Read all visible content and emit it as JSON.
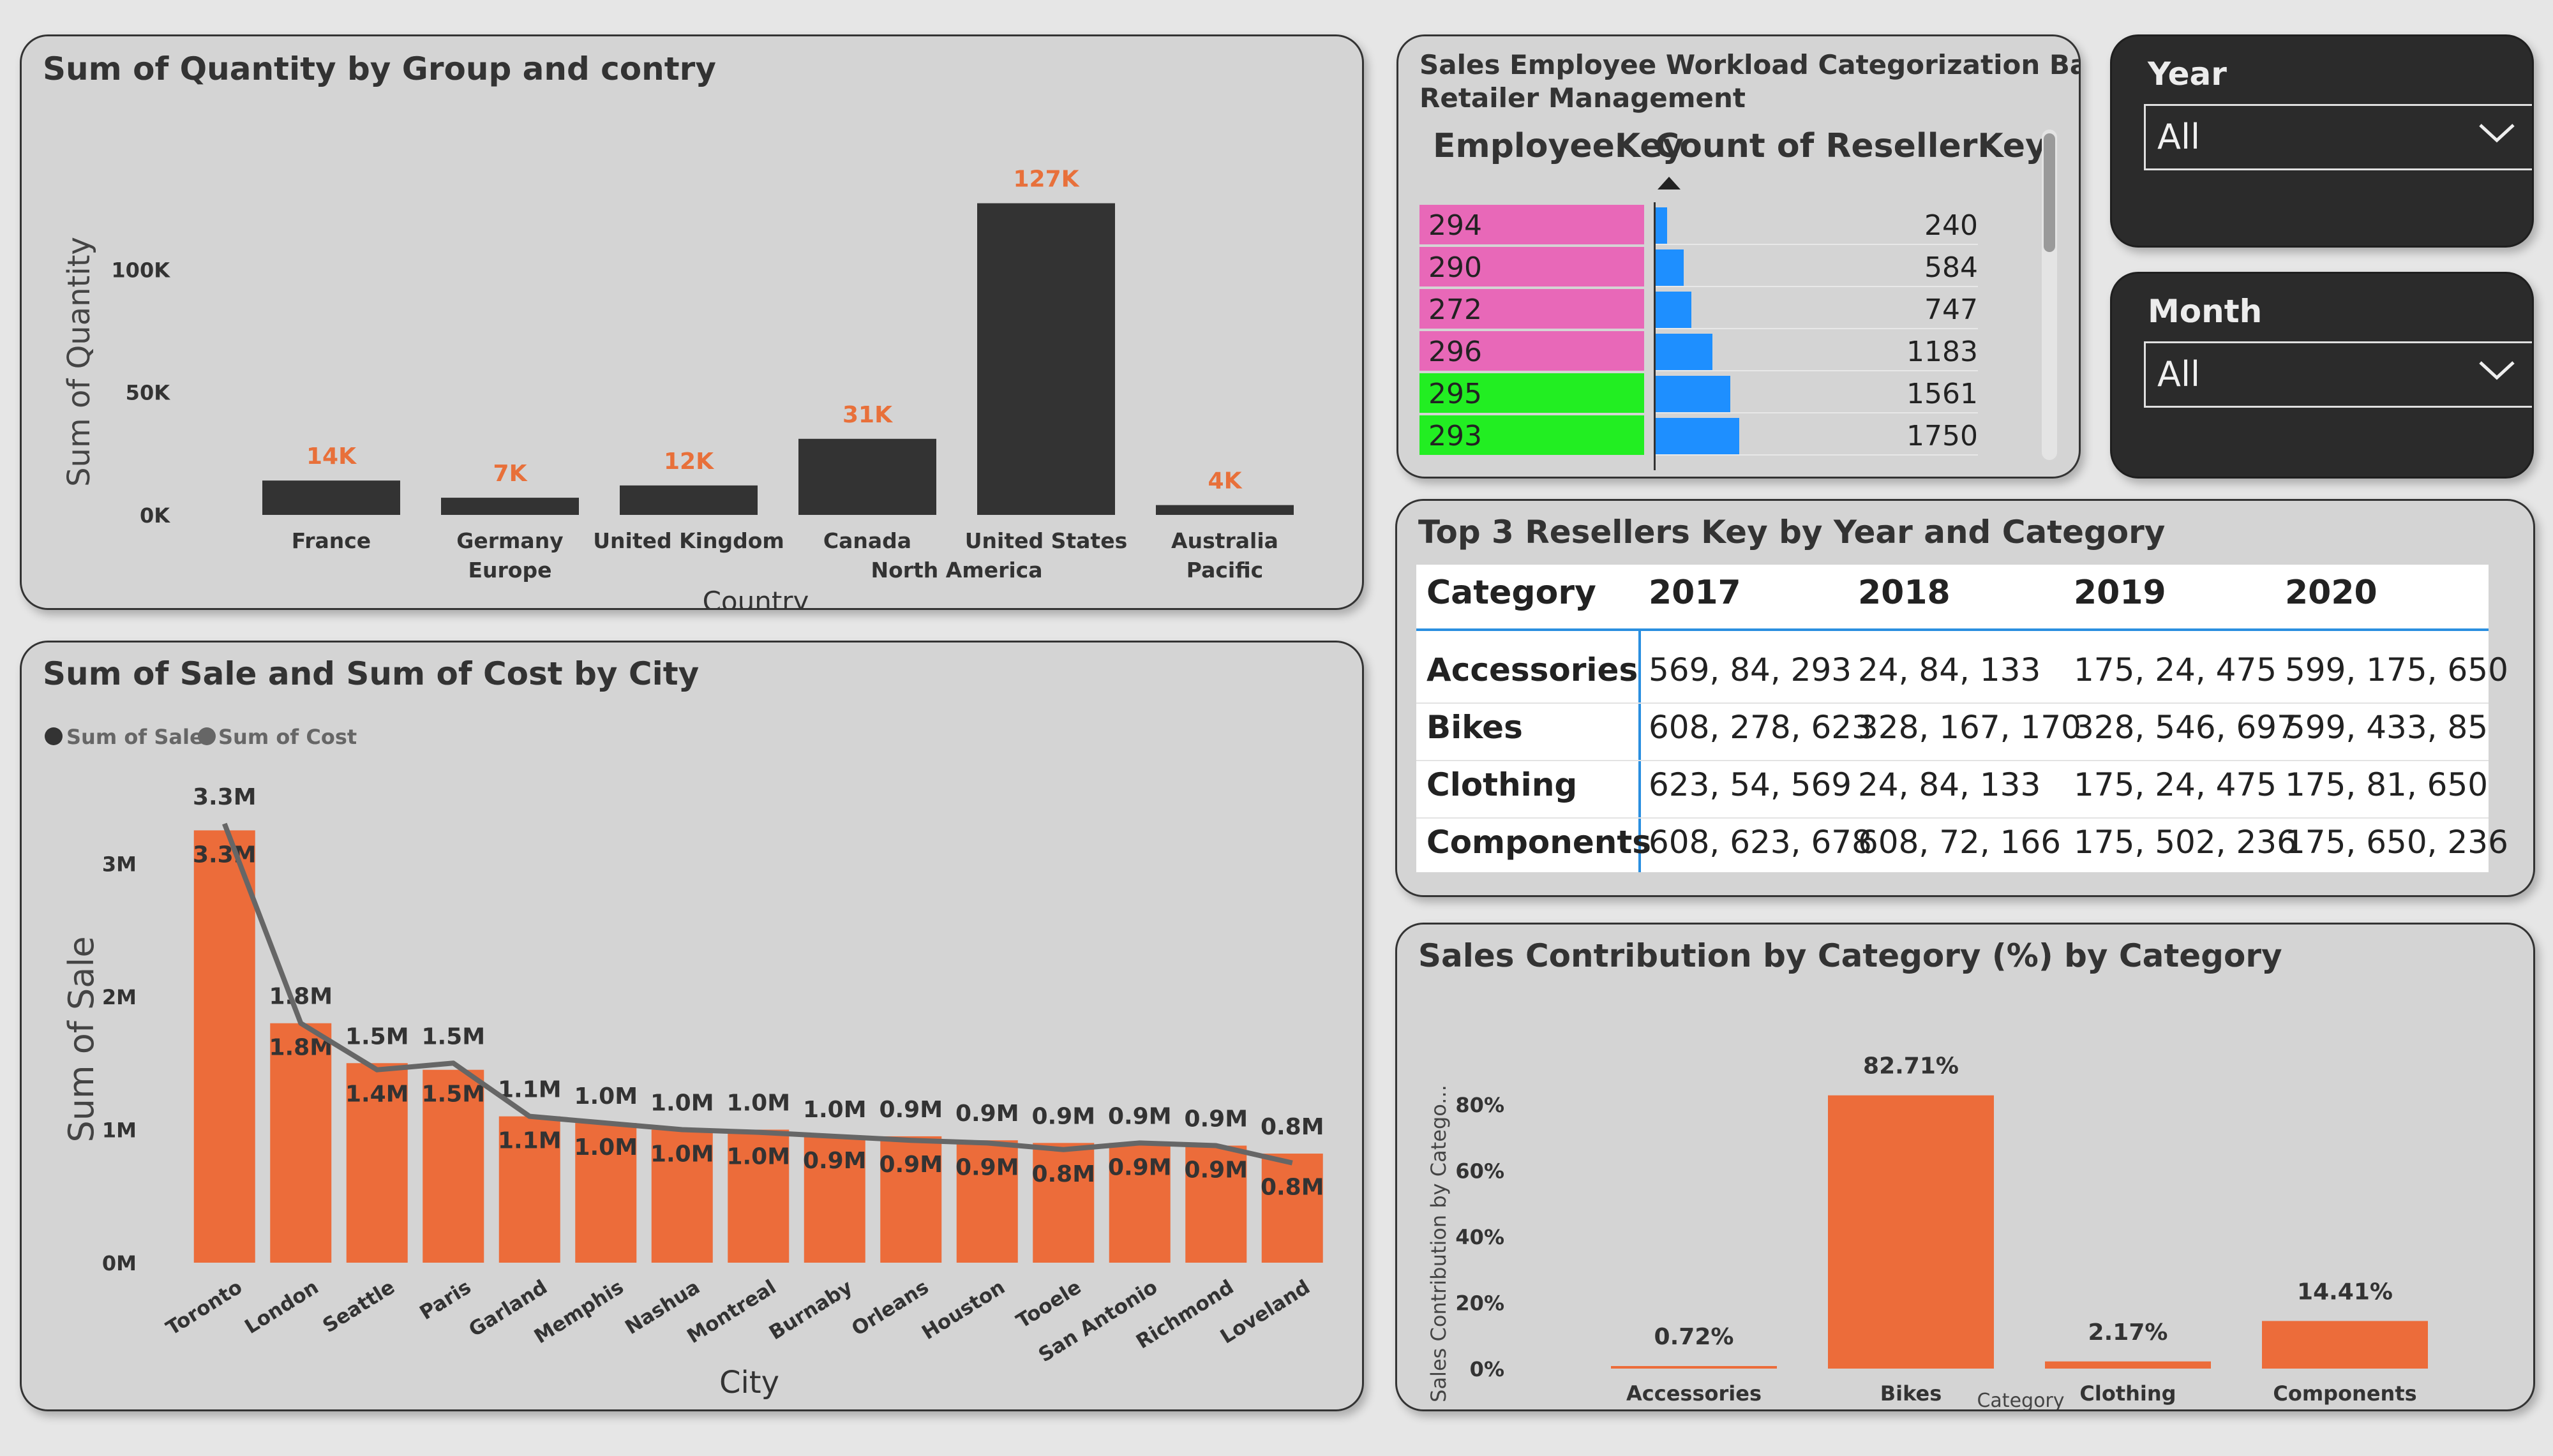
{
  "quantity_chart": {
    "title": "Sum of Quantity by Group and contry",
    "ylabel": "Sum of Quantity",
    "xlabel": "Country",
    "y_ticks": [
      "100K",
      "50K",
      "0K"
    ],
    "groups": [
      "Europe",
      "North America",
      "Pacific"
    ],
    "chart_data": {
      "type": "bar",
      "categories": [
        "France",
        "Germany",
        "United Kingdom",
        "Canada",
        "United States",
        "Australia"
      ],
      "groups": [
        "Europe",
        "Europe",
        "Europe",
        "North America",
        "North America",
        "Pacific"
      ],
      "values": [
        14000,
        7000,
        12000,
        31000,
        127000,
        4000
      ],
      "data_labels": [
        "14K",
        "7K",
        "12K",
        "31K",
        "127K",
        "4K"
      ],
      "ylim": [
        0,
        130000
      ],
      "bar_color": "#333333",
      "label_color": "#e8703a"
    }
  },
  "sale_cost_chart": {
    "title": "Sum of Sale and Sum of Cost by City",
    "legend": [
      "Sum of Sale",
      "Sum of Cost"
    ],
    "ylabel": "Sum of Sale",
    "xlabel": "City",
    "y_ticks": [
      "3M",
      "2M",
      "1M",
      "0M"
    ],
    "chart_data": {
      "type": "bar",
      "categories": [
        "Toronto",
        "London",
        "Seattle",
        "Paris",
        "Garland",
        "Memphis",
        "Nashua",
        "Montreal",
        "Burnaby",
        "Orleans",
        "Houston",
        "Tooele",
        "San Antonio",
        "Richmond",
        "Loveland"
      ],
      "series": [
        {
          "name": "Sum of Sale",
          "values": [
            3.25,
            1.8,
            1.5,
            1.45,
            1.1,
            1.05,
            1.0,
            1.0,
            0.95,
            0.95,
            0.92,
            0.9,
            0.9,
            0.88,
            0.82
          ],
          "labels": [
            "3.3M",
            "1.8M",
            "1.5M",
            "1.5M",
            "1.1M",
            "1.0M",
            "1.0M",
            "1.0M",
            "1.0M",
            "0.9M",
            "0.9M",
            "0.9M",
            "0.9M",
            "0.9M",
            "0.8M"
          ],
          "color": "#ec6c3a"
        },
        {
          "name": "Sum of Cost",
          "values": [
            3.3,
            1.8,
            1.45,
            1.5,
            1.1,
            1.05,
            1.0,
            0.98,
            0.95,
            0.92,
            0.9,
            0.85,
            0.9,
            0.88,
            0.75
          ],
          "labels": [
            "3.3M",
            "1.8M",
            "1.4M",
            "1.5M",
            "1.1M",
            "1.0M",
            "1.0M",
            "1.0M",
            "0.9M",
            "0.9M",
            "0.9M",
            "0.8M",
            "0.9M",
            "0.9M",
            "0.8M"
          ],
          "color": "#666666"
        }
      ],
      "ylim": [
        0,
        3.3
      ],
      "unit": "M"
    }
  },
  "workload": {
    "title_line1": "Sales Employee Workload Categorization Based on",
    "title_line2": "Retailer Management",
    "col1": "EmployeeKey",
    "col2": "Count of ResellerKey",
    "max_value": 2000,
    "rows": [
      {
        "key": "294",
        "value": 240,
        "color": "#e868b8"
      },
      {
        "key": "290",
        "value": 584,
        "color": "#e868b8"
      },
      {
        "key": "272",
        "value": 747,
        "color": "#e868b8"
      },
      {
        "key": "296",
        "value": 1183,
        "color": "#e868b8"
      },
      {
        "key": "295",
        "value": 1561,
        "color": "#22ee22"
      },
      {
        "key": "293",
        "value": 1750,
        "color": "#22ee22"
      }
    ]
  },
  "year_slicer": {
    "label": "Year",
    "value": "All"
  },
  "month_slicer": {
    "label": "Month",
    "value": "All"
  },
  "top_resellers": {
    "title": "Top 3 Resellers Key by Year and Category",
    "headers": [
      "Category",
      "2017",
      "2018",
      "2019",
      "2020"
    ],
    "rows": [
      [
        "Accessories",
        "569, 84, 293",
        "24, 84, 133",
        "175, 24, 475",
        "599, 175, 650"
      ],
      [
        "Bikes",
        "608, 278, 623",
        "328, 167, 170",
        "328, 546, 697",
        "599, 433, 85"
      ],
      [
        "Clothing",
        "623, 54, 569",
        "24, 84, 133",
        "175, 24, 475",
        "175, 81, 650"
      ],
      [
        "Components",
        "608, 623, 678",
        "608, 72, 166",
        "175, 502, 236",
        "175, 650, 236"
      ]
    ]
  },
  "contribution_chart": {
    "title": "Sales Contribution by Category (%) by Category",
    "ylabel": "Sales Contribution by Catego...",
    "xlabel": "Category",
    "y_ticks": [
      "80%",
      "60%",
      "40%",
      "20%",
      "0%"
    ],
    "chart_data": {
      "type": "bar",
      "categories": [
        "Accessories",
        "Bikes",
        "Clothing",
        "Components"
      ],
      "values": [
        0.72,
        82.71,
        2.17,
        14.41
      ],
      "data_labels": [
        "0.72%",
        "82.71%",
        "2.17%",
        "14.41%"
      ],
      "ylim": [
        0,
        90
      ],
      "bar_color": "#ec6c3a"
    }
  }
}
